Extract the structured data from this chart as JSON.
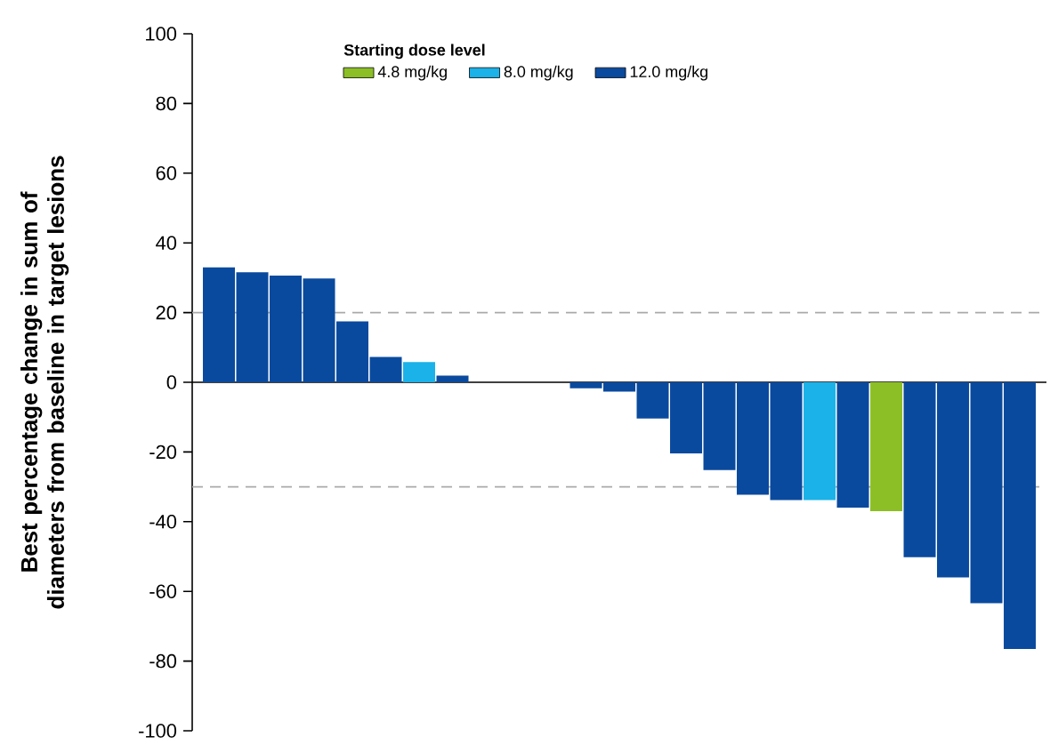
{
  "chart_data": {
    "type": "bar",
    "ylabel": "Best percentage change in sum of diameters from baseline in target lesions",
    "legend_title": "Starting dose level",
    "legend": "top",
    "stacked": true,
    "categories": [
      null,
      null,
      null,
      null,
      null,
      null,
      null,
      null,
      null,
      null,
      null,
      null,
      null,
      null,
      null,
      null,
      null,
      null,
      null,
      null,
      null,
      null,
      null,
      null,
      null
    ],
    "series": [
      {
        "name": "4.8 mg/kg",
        "color": "#8cbf26",
        "values": [
          null,
          null,
          null,
          null,
          null,
          null,
          null,
          null,
          null,
          null,
          null,
          null,
          null,
          null,
          null,
          null,
          null,
          null,
          null,
          null,
          -37,
          null,
          null,
          null,
          null
        ]
      },
      {
        "name": "8.0 mg/kg",
        "color": "#1ab2e8",
        "values": [
          null,
          null,
          null,
          null,
          null,
          null,
          5.8,
          null,
          null,
          null,
          null,
          null,
          null,
          null,
          null,
          null,
          null,
          null,
          -33.8,
          null,
          null,
          null,
          null,
          null,
          null
        ]
      },
      {
        "name": "12.0 mg/kg",
        "color": "#0a4a9e",
        "values": [
          33,
          31.6,
          30.6,
          29.8,
          17.5,
          7.3,
          null,
          1.9,
          null,
          null,
          null,
          -1.7,
          -2.7,
          -10.4,
          -20.4,
          -25.2,
          -32.3,
          -33.8,
          null,
          -36,
          null,
          -50.2,
          -56,
          -63.4,
          -76.5
        ]
      }
    ],
    "ylim": [
      -100,
      100
    ],
    "yticks": [
      100,
      80,
      60,
      40,
      20,
      0,
      -20,
      -40,
      -60,
      -80,
      -100
    ],
    "ref_lines": [
      {
        "axis": "y",
        "value": 20,
        "color": "#aaaaaa",
        "line_style": "dashed"
      },
      {
        "axis": "y",
        "value": -30,
        "color": "#aaaaaa",
        "line_style": "dashed"
      }
    ]
  }
}
